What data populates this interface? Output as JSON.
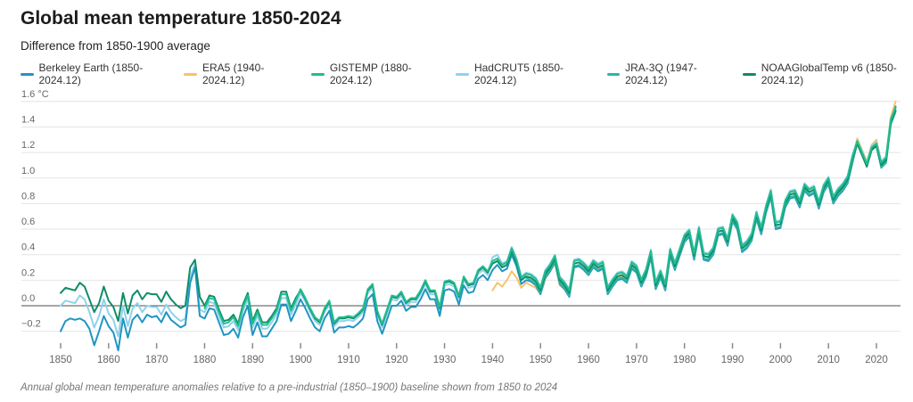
{
  "header": {
    "title": "Global mean temperature 1850-2024",
    "subtitle": "Difference from 1850-1900 average"
  },
  "caption": "Annual global mean temperature anomalies relative to a pre-industrial (1850–1900) baseline shown from 1850 to 2024",
  "chart_data": {
    "type": "line",
    "title": "Global mean temperature 1850-2024",
    "subtitle": "Difference from 1850-1900 average",
    "unit": "°C",
    "grid": true,
    "legend_position": "top",
    "xlim": [
      1850,
      2024
    ],
    "ylim": [
      -0.45,
      1.65
    ],
    "yticks": [
      1.6,
      1.4,
      1.2,
      1.0,
      0.8,
      0.6,
      0.4,
      0.2,
      0.0,
      -0.2
    ],
    "ytick_labels": [
      "1.6 °C",
      "1.4",
      "1.2",
      "1.0",
      "0.8",
      "0.6",
      "0.4",
      "0.2",
      "0.0",
      "−0.2"
    ],
    "xticks": [
      1850,
      1860,
      1870,
      1880,
      1890,
      1900,
      1910,
      1920,
      1930,
      1940,
      1950,
      1960,
      1970,
      1980,
      1990,
      2000,
      2010,
      2020
    ],
    "series": [
      {
        "name": "Berkeley Earth (1850-2024.12)",
        "color": "#2096c3",
        "start_year": 1850,
        "values": [
          -0.2,
          -0.12,
          -0.1,
          -0.11,
          -0.1,
          -0.12,
          -0.18,
          -0.31,
          -0.2,
          -0.08,
          -0.16,
          -0.21,
          -0.35,
          -0.1,
          -0.25,
          -0.11,
          -0.07,
          -0.13,
          -0.07,
          -0.09,
          -0.08,
          -0.13,
          -0.05,
          -0.11,
          -0.14,
          -0.17,
          -0.15,
          0.18,
          0.3,
          -0.08,
          -0.1,
          -0.02,
          -0.03,
          -0.13,
          -0.23,
          -0.22,
          -0.18,
          -0.25,
          -0.09,
          0.0,
          -0.23,
          -0.13,
          -0.24,
          -0.24,
          -0.18,
          -0.12,
          0.01,
          0.01,
          -0.12,
          -0.04,
          0.05,
          -0.02,
          -0.1,
          -0.17,
          -0.2,
          -0.1,
          -0.04,
          -0.21,
          -0.17,
          -0.17,
          -0.16,
          -0.17,
          -0.14,
          -0.1,
          0.05,
          0.09,
          -0.12,
          -0.22,
          -0.11,
          0.0,
          0.0,
          0.04,
          -0.04,
          -0.01,
          -0.01,
          0.05,
          0.13,
          0.05,
          0.05,
          -0.08,
          0.12,
          0.13,
          0.11,
          0.01,
          0.16,
          0.1,
          0.11,
          0.21,
          0.24,
          0.2,
          0.28,
          0.32,
          0.27,
          0.29,
          0.4,
          0.31,
          0.17,
          0.2,
          0.19,
          0.16,
          0.09,
          0.22,
          0.27,
          0.34,
          0.17,
          0.13,
          0.07,
          0.3,
          0.31,
          0.28,
          0.24,
          0.3,
          0.27,
          0.29,
          0.09,
          0.15,
          0.2,
          0.21,
          0.18,
          0.29,
          0.26,
          0.15,
          0.23,
          0.38,
          0.13,
          0.22,
          0.12,
          0.39,
          0.28,
          0.39,
          0.5,
          0.54,
          0.36,
          0.56,
          0.36,
          0.35,
          0.4,
          0.55,
          0.56,
          0.47,
          0.66,
          0.6,
          0.42,
          0.45,
          0.51,
          0.68,
          0.56,
          0.73,
          0.85,
          0.6,
          0.61,
          0.77,
          0.84,
          0.85,
          0.77,
          0.9,
          0.86,
          0.88,
          0.76,
          0.89,
          0.95,
          0.8,
          0.86,
          0.9,
          0.96,
          1.12,
          1.28,
          1.19,
          1.1,
          1.23,
          1.26,
          1.11,
          1.15,
          1.45,
          1.56
        ]
      },
      {
        "name": "ERA5 (1940-2024.12)",
        "color": "#f6c46e",
        "start_year": 1940,
        "values": [
          0.12,
          0.18,
          0.15,
          0.2,
          0.27,
          0.22,
          0.14,
          0.18,
          0.16,
          0.14,
          0.09,
          0.21,
          0.27,
          0.33,
          0.16,
          0.13,
          0.08,
          0.3,
          0.32,
          0.29,
          0.26,
          0.32,
          0.29,
          0.31,
          0.12,
          0.17,
          0.22,
          0.23,
          0.2,
          0.31,
          0.28,
          0.17,
          0.25,
          0.4,
          0.15,
          0.24,
          0.14,
          0.41,
          0.3,
          0.42,
          0.53,
          0.58,
          0.39,
          0.59,
          0.39,
          0.38,
          0.43,
          0.58,
          0.59,
          0.5,
          0.69,
          0.63,
          0.45,
          0.48,
          0.54,
          0.71,
          0.59,
          0.76,
          0.88,
          0.63,
          0.64,
          0.8,
          0.87,
          0.88,
          0.8,
          0.93,
          0.89,
          0.91,
          0.79,
          0.92,
          0.98,
          0.83,
          0.89,
          0.93,
          0.99,
          1.16,
          1.31,
          1.22,
          1.13,
          1.26,
          1.3,
          1.12,
          1.17,
          1.48,
          1.6
        ]
      },
      {
        "name": "GISTEMP (1880-2024.12)",
        "color": "#22bd8c",
        "start_year": 1880,
        "values": [
          -0.02,
          0.06,
          0.05,
          -0.05,
          -0.14,
          -0.13,
          -0.09,
          -0.16,
          -0.01,
          0.08,
          -0.14,
          -0.05,
          -0.15,
          -0.15,
          -0.1,
          -0.04,
          0.09,
          0.09,
          -0.04,
          0.04,
          0.13,
          0.06,
          -0.02,
          -0.09,
          -0.12,
          -0.02,
          0.04,
          -0.13,
          -0.09,
          -0.09,
          -0.08,
          -0.09,
          -0.06,
          -0.02,
          0.13,
          0.17,
          -0.04,
          -0.14,
          -0.03,
          0.08,
          0.07,
          0.11,
          0.03,
          0.06,
          0.06,
          0.12,
          0.2,
          0.12,
          0.12,
          -0.01,
          0.19,
          0.2,
          0.18,
          0.08,
          0.23,
          0.17,
          0.18,
          0.28,
          0.31,
          0.27,
          0.35,
          0.37,
          0.32,
          0.34,
          0.45,
          0.36,
          0.22,
          0.25,
          0.24,
          0.21,
          0.14,
          0.27,
          0.32,
          0.39,
          0.22,
          0.18,
          0.12,
          0.35,
          0.36,
          0.33,
          0.29,
          0.35,
          0.32,
          0.34,
          0.14,
          0.2,
          0.25,
          0.26,
          0.23,
          0.34,
          0.31,
          0.2,
          0.28,
          0.43,
          0.18,
          0.27,
          0.17,
          0.44,
          0.33,
          0.44,
          0.55,
          0.59,
          0.41,
          0.61,
          0.41,
          0.4,
          0.45,
          0.6,
          0.61,
          0.52,
          0.71,
          0.65,
          0.47,
          0.5,
          0.56,
          0.73,
          0.61,
          0.78,
          0.9,
          0.65,
          0.66,
          0.82,
          0.89,
          0.9,
          0.82,
          0.95,
          0.91,
          0.93,
          0.81,
          0.94,
          1.0,
          0.85,
          0.91,
          0.95,
          1.01,
          1.17,
          1.29,
          1.2,
          1.11,
          1.24,
          1.27,
          1.12,
          1.16,
          1.46,
          1.55
        ]
      },
      {
        "name": "HadCRUT5 (1850-2024.12)",
        "color": "#90d1ec",
        "start_year": 1850,
        "values": [
          0.0,
          0.04,
          0.03,
          0.02,
          0.08,
          0.05,
          -0.05,
          -0.17,
          -0.08,
          0.05,
          -0.06,
          -0.11,
          -0.24,
          0.0,
          -0.16,
          -0.02,
          0.02,
          -0.05,
          0.0,
          -0.01,
          -0.01,
          -0.07,
          0.01,
          -0.05,
          -0.09,
          -0.12,
          -0.1,
          0.22,
          0.33,
          -0.03,
          -0.05,
          0.03,
          0.02,
          -0.08,
          -0.17,
          -0.16,
          -0.12,
          -0.19,
          -0.04,
          0.05,
          -0.17,
          -0.08,
          -0.18,
          -0.18,
          -0.13,
          -0.07,
          0.06,
          0.06,
          -0.07,
          0.01,
          0.1,
          0.03,
          -0.05,
          -0.12,
          -0.15,
          -0.05,
          0.01,
          -0.16,
          -0.12,
          -0.12,
          -0.11,
          -0.12,
          -0.09,
          -0.05,
          0.1,
          0.14,
          -0.07,
          -0.17,
          -0.06,
          0.05,
          0.04,
          0.08,
          0.0,
          0.03,
          0.03,
          0.09,
          0.17,
          0.09,
          0.09,
          -0.04,
          0.16,
          0.17,
          0.15,
          0.05,
          0.2,
          0.14,
          0.15,
          0.25,
          0.28,
          0.24,
          0.38,
          0.4,
          0.33,
          0.35,
          0.46,
          0.37,
          0.23,
          0.26,
          0.25,
          0.22,
          0.15,
          0.28,
          0.33,
          0.4,
          0.23,
          0.19,
          0.13,
          0.36,
          0.37,
          0.34,
          0.3,
          0.36,
          0.33,
          0.35,
          0.15,
          0.21,
          0.26,
          0.27,
          0.24,
          0.35,
          0.32,
          0.21,
          0.29,
          0.44,
          0.19,
          0.28,
          0.18,
          0.45,
          0.34,
          0.45,
          0.56,
          0.6,
          0.42,
          0.62,
          0.42,
          0.41,
          0.46,
          0.61,
          0.62,
          0.53,
          0.72,
          0.66,
          0.48,
          0.51,
          0.57,
          0.74,
          0.62,
          0.79,
          0.91,
          0.66,
          0.67,
          0.83,
          0.9,
          0.91,
          0.83,
          0.96,
          0.92,
          0.94,
          0.82,
          0.95,
          1.01,
          0.86,
          0.92,
          0.96,
          1.02,
          1.18,
          1.29,
          1.21,
          1.12,
          1.25,
          1.28,
          1.13,
          1.17,
          1.46,
          1.55
        ]
      },
      {
        "name": "JRA-3Q (1947-2024.12)",
        "color": "#2fb5a6",
        "start_year": 1947,
        "values": [
          0.22,
          0.2,
          0.17,
          0.1,
          0.23,
          0.28,
          0.35,
          0.18,
          0.14,
          0.08,
          0.31,
          0.32,
          0.29,
          0.25,
          0.31,
          0.28,
          0.3,
          0.1,
          0.16,
          0.21,
          0.22,
          0.19,
          0.3,
          0.27,
          0.16,
          0.24,
          0.39,
          0.14,
          0.23,
          0.13,
          0.4,
          0.29,
          0.4,
          0.51,
          0.55,
          0.37,
          0.57,
          0.37,
          0.36,
          0.41,
          0.56,
          0.57,
          0.48,
          0.67,
          0.61,
          0.43,
          0.46,
          0.52,
          0.69,
          0.57,
          0.74,
          0.86,
          0.61,
          0.62,
          0.78,
          0.85,
          0.86,
          0.78,
          0.91,
          0.87,
          0.89,
          0.77,
          0.9,
          0.96,
          0.81,
          0.87,
          0.91,
          0.97,
          1.13,
          1.27,
          1.18,
          1.09,
          1.22,
          1.25,
          1.08,
          1.12,
          1.42,
          1.52
        ]
      },
      {
        "name": "NOAAGlobalTemp v6 (1850-2024.12)",
        "color": "#0e8d68",
        "start_year": 1850,
        "values": [
          0.1,
          0.14,
          0.13,
          0.12,
          0.18,
          0.15,
          0.05,
          -0.05,
          0.02,
          0.15,
          0.04,
          -0.01,
          -0.12,
          0.1,
          -0.06,
          0.08,
          0.12,
          0.05,
          0.1,
          0.09,
          0.09,
          0.03,
          0.11,
          0.05,
          0.01,
          -0.02,
          0.0,
          0.3,
          0.36,
          0.07,
          0.0,
          0.08,
          0.07,
          -0.03,
          -0.12,
          -0.11,
          -0.07,
          -0.14,
          0.01,
          0.1,
          -0.12,
          -0.03,
          -0.13,
          -0.13,
          -0.08,
          -0.02,
          0.11,
          0.11,
          -0.02,
          0.06,
          0.12,
          0.05,
          -0.03,
          -0.1,
          -0.13,
          -0.03,
          0.03,
          -0.14,
          -0.1,
          -0.1,
          -0.09,
          -0.1,
          -0.07,
          -0.03,
          0.12,
          0.16,
          -0.05,
          -0.15,
          -0.04,
          0.07,
          0.06,
          0.1,
          0.02,
          0.05,
          0.05,
          0.11,
          0.19,
          0.11,
          0.11,
          -0.02,
          0.18,
          0.19,
          0.17,
          0.07,
          0.22,
          0.16,
          0.17,
          0.27,
          0.3,
          0.26,
          0.33,
          0.35,
          0.3,
          0.32,
          0.43,
          0.34,
          0.2,
          0.23,
          0.22,
          0.19,
          0.12,
          0.25,
          0.3,
          0.37,
          0.2,
          0.16,
          0.1,
          0.33,
          0.34,
          0.31,
          0.27,
          0.33,
          0.3,
          0.32,
          0.12,
          0.18,
          0.23,
          0.24,
          0.21,
          0.32,
          0.29,
          0.18,
          0.26,
          0.41,
          0.16,
          0.25,
          0.15,
          0.42,
          0.31,
          0.42,
          0.53,
          0.57,
          0.39,
          0.59,
          0.39,
          0.38,
          0.43,
          0.58,
          0.59,
          0.5,
          0.69,
          0.63,
          0.45,
          0.48,
          0.54,
          0.71,
          0.59,
          0.76,
          0.88,
          0.63,
          0.64,
          0.8,
          0.87,
          0.88,
          0.8,
          0.93,
          0.89,
          0.91,
          0.79,
          0.92,
          0.98,
          0.83,
          0.89,
          0.93,
          0.99,
          1.15,
          1.27,
          1.18,
          1.09,
          1.22,
          1.25,
          1.1,
          1.14,
          1.44,
          1.53
        ]
      }
    ]
  }
}
